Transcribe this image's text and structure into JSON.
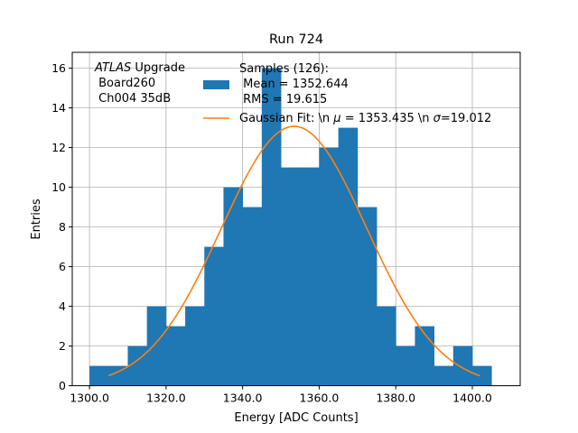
{
  "chart_data": {
    "type": "bar",
    "title": "Run 724",
    "xlabel": "Energy [ADC Counts]",
    "ylabel": "Entries",
    "xlim": [
      1295.5,
      1412.5
    ],
    "ylim": [
      0,
      16.8
    ],
    "grid": true,
    "legend_placement": "top-right",
    "x_ticks": [
      1300,
      1320,
      1340,
      1360,
      1380,
      1400
    ],
    "x_tick_labels": [
      "1300.0",
      "1320.0",
      "1340.0",
      "1360.0",
      "1380.0",
      "1400.0"
    ],
    "y_ticks": [
      0,
      2,
      4,
      6,
      8,
      10,
      12,
      14,
      16
    ],
    "y_tick_labels": [
      "0",
      "2",
      "4",
      "6",
      "8",
      "10",
      "12",
      "14",
      "16"
    ],
    "bin_width": 5,
    "bins": [
      {
        "start": 1300,
        "count": 1
      },
      {
        "start": 1305,
        "count": 1
      },
      {
        "start": 1310,
        "count": 2
      },
      {
        "start": 1315,
        "count": 4
      },
      {
        "start": 1320,
        "count": 3
      },
      {
        "start": 1325,
        "count": 4
      },
      {
        "start": 1330,
        "count": 7
      },
      {
        "start": 1335,
        "count": 10
      },
      {
        "start": 1340,
        "count": 9
      },
      {
        "start": 1345,
        "count": 16
      },
      {
        "start": 1350,
        "count": 11
      },
      {
        "start": 1355,
        "count": 11
      },
      {
        "start": 1360,
        "count": 12
      },
      {
        "start": 1365,
        "count": 13
      },
      {
        "start": 1370,
        "count": 9
      },
      {
        "start": 1375,
        "count": 4
      },
      {
        "start": 1380,
        "count": 2
      },
      {
        "start": 1385,
        "count": 3
      },
      {
        "start": 1390,
        "count": 1
      },
      {
        "start": 1395,
        "count": 2
      },
      {
        "start": 1400,
        "count": 1
      }
    ],
    "fit": {
      "mu": 1353.435,
      "sigma": 19.012,
      "amplitude": 13.07,
      "x_range": [
        1305,
        1402
      ]
    },
    "annotation": {
      "line1_italic": "ATLAS",
      "line1_rest": " Upgrade",
      "line2": " Board260",
      "line3": " Ch004 35dB"
    },
    "legend": {
      "hist_line1": "Samples (126):",
      "hist_line2": " Mean = 1352.644",
      "hist_line3": " RMS = 19.615",
      "fit_prefix": "Gaussian Fit: \\n ",
      "fit_mu_symbol": "μ",
      "fit_mid": " = 1353.435 \\n ",
      "fit_sigma_symbol": "σ",
      "fit_suffix": "=19.012"
    },
    "colors": {
      "hist": "#1f77b4",
      "fit": "#ff7f0e",
      "grid": "#b0b0b0"
    }
  }
}
